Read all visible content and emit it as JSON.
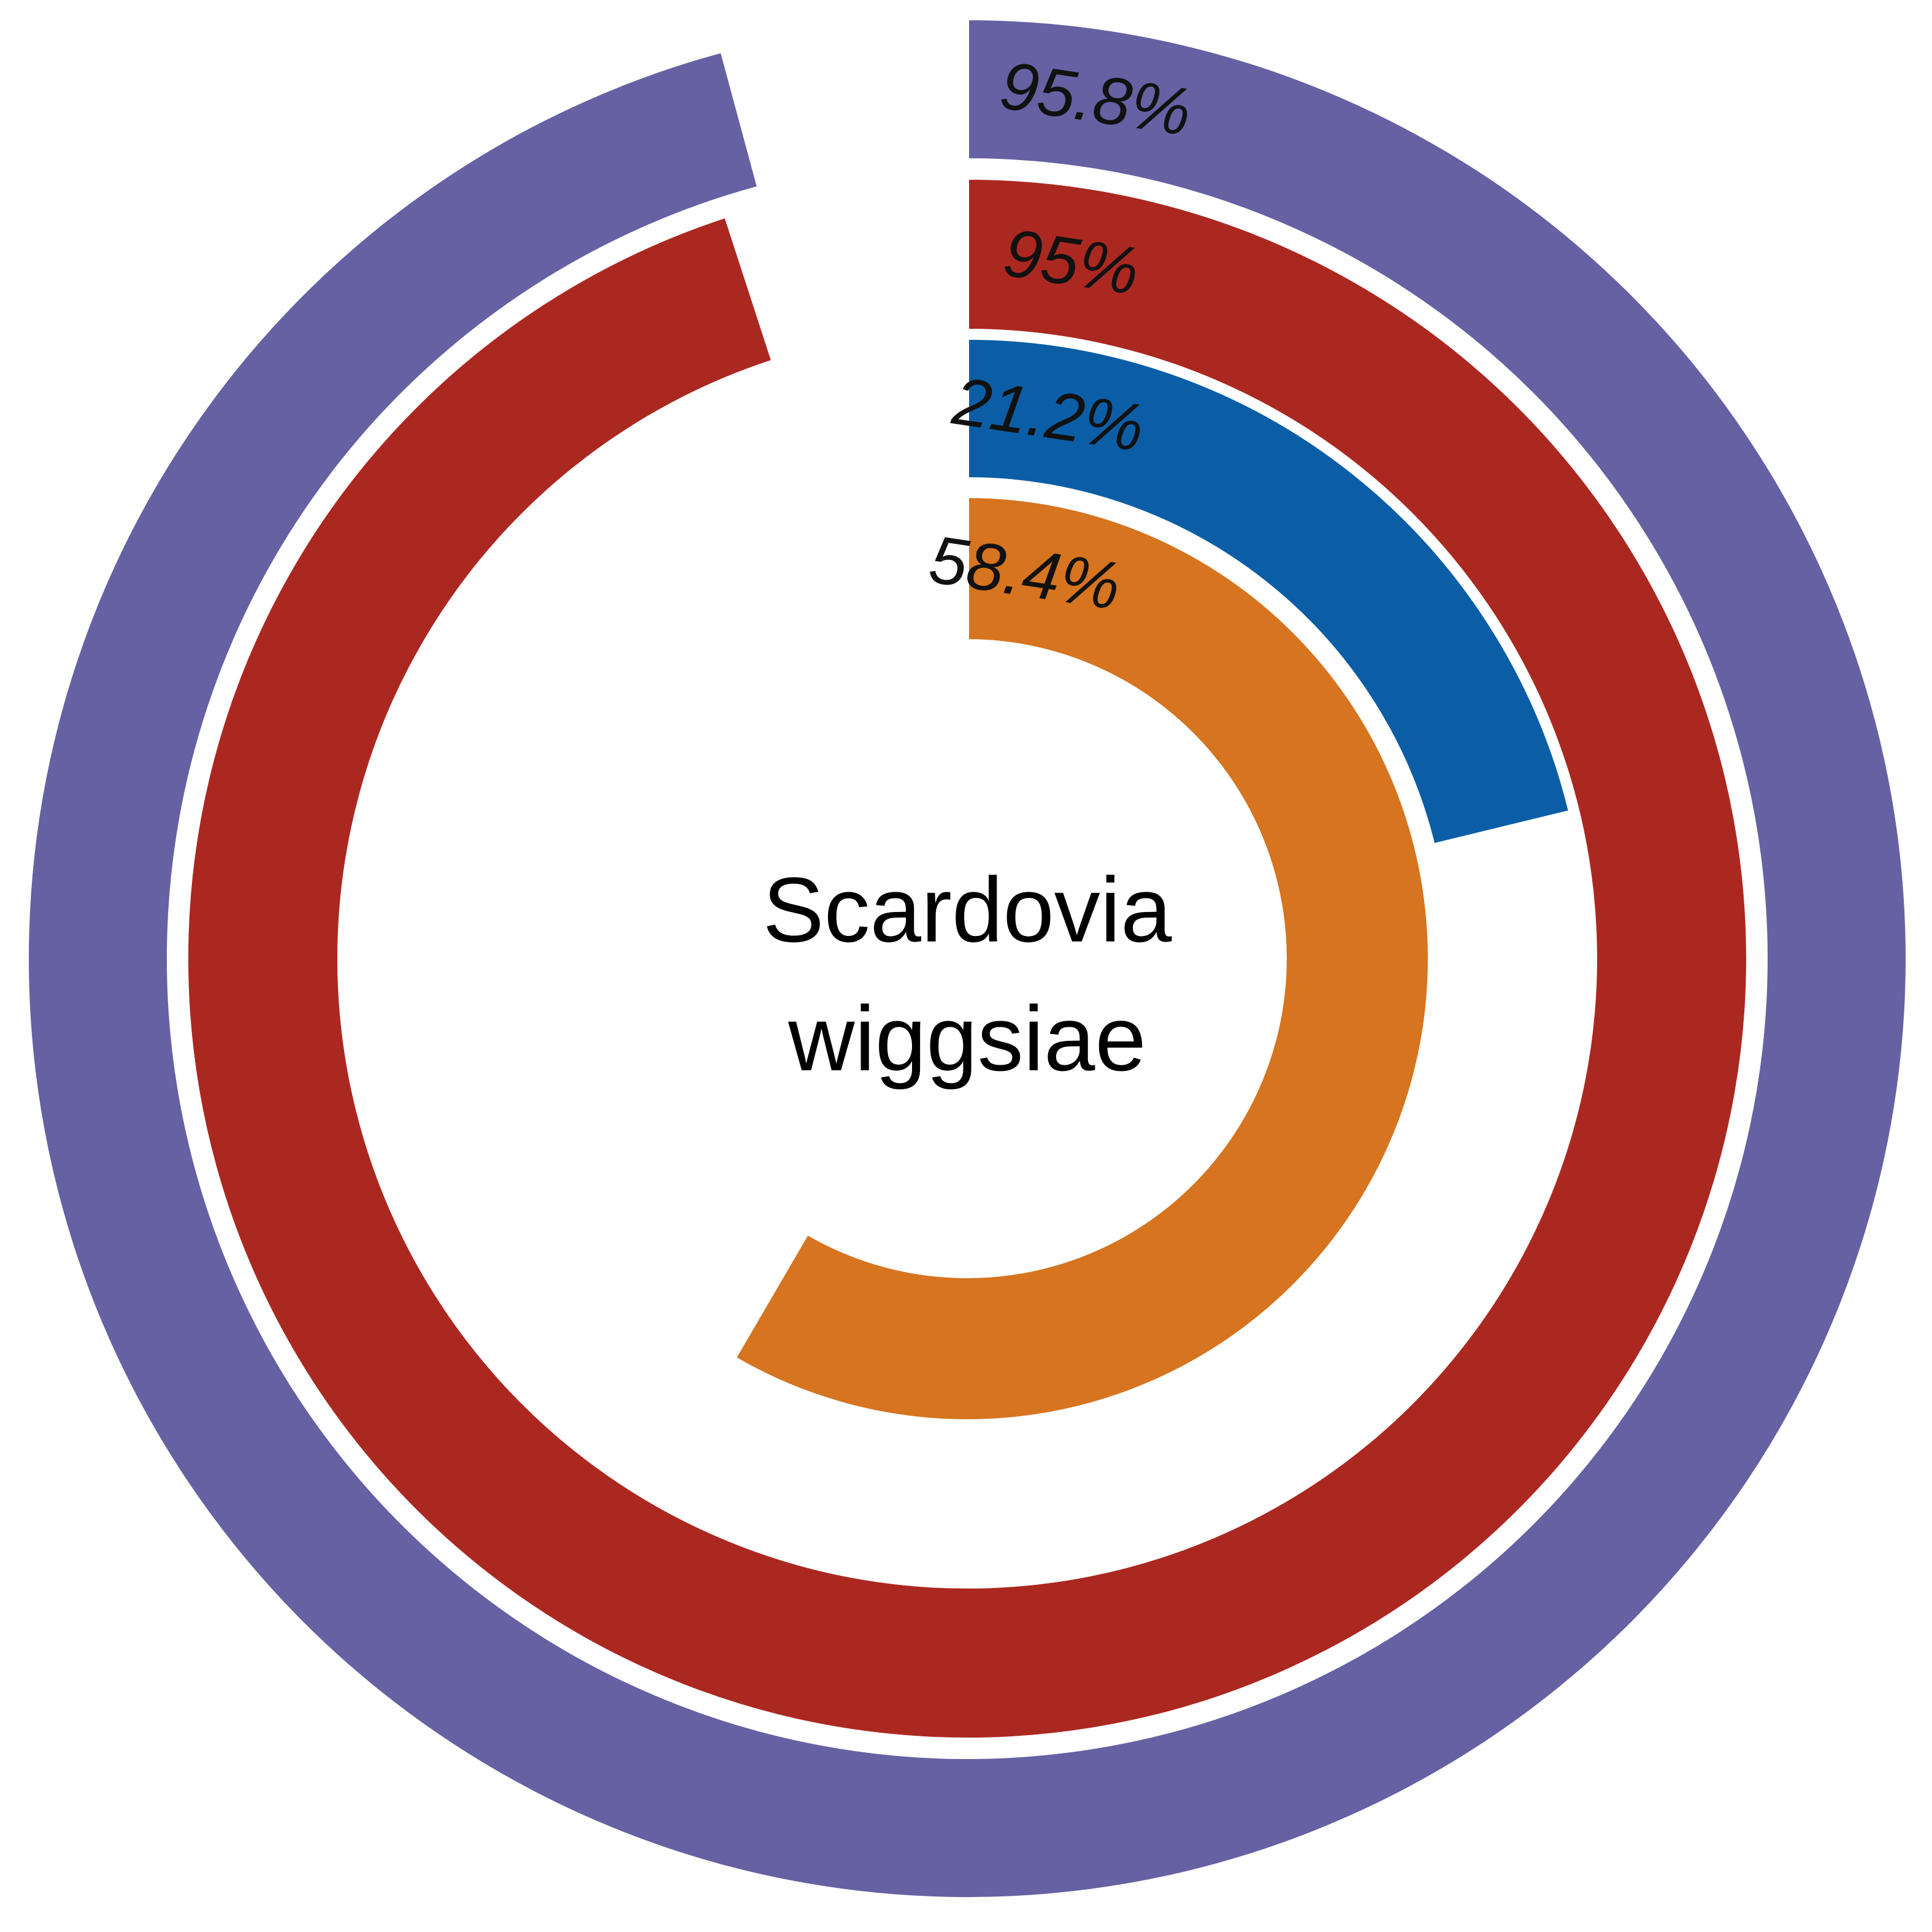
{
  "chart_data": {
    "type": "radial-bar",
    "center_label": [
      "Scardovia",
      "wiggsiae"
    ],
    "series": [
      {
        "label": "95.8%",
        "value": 95.8,
        "color": "#6661a3"
      },
      {
        "label": "95%",
        "value": 95.0,
        "color": "#ab2821"
      },
      {
        "label": "21.2%",
        "value": 21.2,
        "color": "#0b5ea6"
      },
      {
        "label": "58.4%",
        "value": 58.4,
        "color": "#d6741f"
      }
    ],
    "max_value": 100,
    "start_angle": "12 o'clock",
    "direction": "clockwise"
  }
}
